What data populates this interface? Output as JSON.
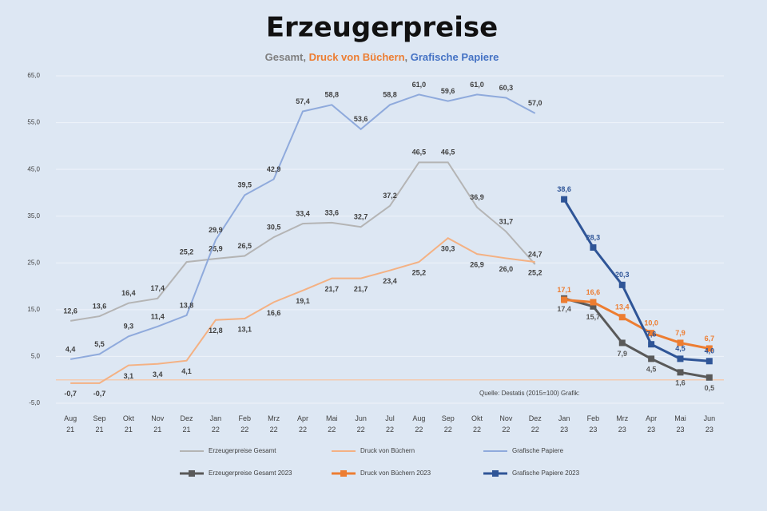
{
  "chart_data": {
    "type": "line",
    "title": "Erzeugerpreise",
    "subtitle": [
      {
        "text": "Gesamt, ",
        "color": "#7f7f7f"
      },
      {
        "text": "Druck von Büchern",
        "color": "#ed7d31"
      },
      {
        "text": ", ",
        "color": "#7f7f7f"
      },
      {
        "text": "Grafische Papiere",
        "color": "#4472c4"
      }
    ],
    "source": "Quelle: Destatis (2015=100) Grafik:",
    "categories": [
      "Aug 21",
      "Sep 21",
      "Okt 21",
      "Nov 21",
      "Dez 21",
      "Jan 22",
      "Feb 22",
      "Mrz 22",
      "Apr 22",
      "Mai 22",
      "Jun 22",
      "Jul 22",
      "Aug 22",
      "Sep 22",
      "Okt 22",
      "Nov 22",
      "Dez 22",
      "Jan 23",
      "Feb 23",
      "Mrz 23",
      "Apr 23",
      "Mai 23",
      "Jun 23"
    ],
    "ylim": [
      -5,
      65
    ],
    "yticks": [
      {
        "value": -5,
        "label": "-5,0"
      },
      {
        "value": 5,
        "label": "5,0"
      },
      {
        "value": 15,
        "label": "15,0"
      },
      {
        "value": 25,
        "label": "25,0"
      },
      {
        "value": 35,
        "label": "35,0"
      },
      {
        "value": 45,
        "label": "45,0"
      },
      {
        "value": 55,
        "label": "55,0"
      },
      {
        "value": 65,
        "label": "65,0"
      }
    ],
    "grid": true,
    "series": [
      {
        "name": "Erzeugerpreise Gesamt",
        "color": "#b4b4b4",
        "marker": false,
        "values": [
          12.6,
          13.6,
          16.4,
          17.4,
          25.2,
          25.9,
          26.5,
          30.5,
          33.4,
          33.6,
          32.7,
          37.2,
          46.5,
          46.5,
          36.9,
          31.7,
          24.7,
          null,
          null,
          null,
          null,
          null,
          null
        ],
        "value_labels": [
          "12,6",
          "13,6",
          "16,4",
          "17,4",
          "25,2",
          "25,9",
          "26,5",
          "30,5",
          "33,4",
          "33,6",
          "32,7",
          "37,2",
          "46,5",
          "46,5",
          "36,9",
          "31,7",
          "24,7",
          null,
          null,
          null,
          null,
          null,
          null
        ]
      },
      {
        "name": "Druck von Büchern",
        "color": "#f4b183",
        "marker": false,
        "values": [
          -0.7,
          -0.7,
          3.1,
          3.4,
          4.1,
          12.8,
          13.1,
          16.6,
          19.1,
          21.7,
          21.7,
          23.4,
          25.2,
          30.3,
          26.9,
          26.0,
          25.2,
          null,
          null,
          null,
          null,
          null,
          null
        ],
        "value_labels": [
          "-0,7",
          "-0,7",
          "3,1",
          "3,4",
          "4,1",
          "12,8",
          "13,1",
          "16,6",
          "19,1",
          "21,7",
          "21,7",
          "23,4",
          "25,2",
          "30,3",
          "26,9",
          "26,0",
          "25,2",
          null,
          null,
          null,
          null,
          null,
          null
        ]
      },
      {
        "name": "Grafische Papiere",
        "color": "#8faadc",
        "marker": false,
        "values": [
          4.4,
          5.5,
          9.3,
          11.4,
          13.8,
          29.9,
          39.5,
          42.9,
          57.4,
          58.8,
          53.6,
          58.8,
          61.0,
          59.6,
          61.0,
          60.3,
          57.0,
          null,
          null,
          null,
          null,
          null,
          null
        ],
        "value_labels": [
          "4,4",
          "5,5",
          "9,3",
          "11,4",
          "13,8",
          "29,9",
          "39,5",
          "42,9",
          "57,4",
          "58,8",
          "53,6",
          "58,8",
          "61,0",
          "59,6",
          "61,0",
          "60,3",
          "57,0",
          null,
          null,
          null,
          null,
          null,
          null
        ]
      },
      {
        "name": "Erzeugerpreise Gesamt 2023",
        "color": "#595959",
        "marker": true,
        "values": [
          null,
          null,
          null,
          null,
          null,
          null,
          null,
          null,
          null,
          null,
          null,
          null,
          null,
          null,
          null,
          null,
          null,
          17.4,
          15.7,
          7.9,
          4.5,
          1.6,
          0.5
        ],
        "value_labels": [
          null,
          null,
          null,
          null,
          null,
          null,
          null,
          null,
          null,
          null,
          null,
          null,
          null,
          null,
          null,
          null,
          null,
          "17,4",
          "15,7",
          "7,9",
          "4,5",
          "1,6",
          "0,5"
        ]
      },
      {
        "name": "Druck von Büchern 2023",
        "color": "#ed7d31",
        "marker": true,
        "values": [
          null,
          null,
          null,
          null,
          null,
          null,
          null,
          null,
          null,
          null,
          null,
          null,
          null,
          null,
          null,
          null,
          null,
          17.1,
          16.6,
          13.4,
          10.0,
          7.9,
          6.7
        ],
        "value_labels": [
          null,
          null,
          null,
          null,
          null,
          null,
          null,
          null,
          null,
          null,
          null,
          null,
          null,
          null,
          null,
          null,
          null,
          "17,1",
          "16,6",
          "13,4",
          "10,0",
          "7,9",
          "6,7"
        ]
      },
      {
        "name": "Grafische Papiere 2023",
        "color": "#2f5597",
        "marker": true,
        "values": [
          null,
          null,
          null,
          null,
          null,
          null,
          null,
          null,
          null,
          null,
          null,
          null,
          null,
          null,
          null,
          null,
          null,
          38.6,
          28.3,
          20.3,
          7.6,
          4.5,
          4.0
        ],
        "value_labels": [
          null,
          null,
          null,
          null,
          null,
          null,
          null,
          null,
          null,
          null,
          null,
          null,
          null,
          null,
          null,
          null,
          null,
          "38,6",
          "28,3",
          "20,3",
          "7,6",
          "4,5",
          "4,0"
        ]
      }
    ]
  }
}
